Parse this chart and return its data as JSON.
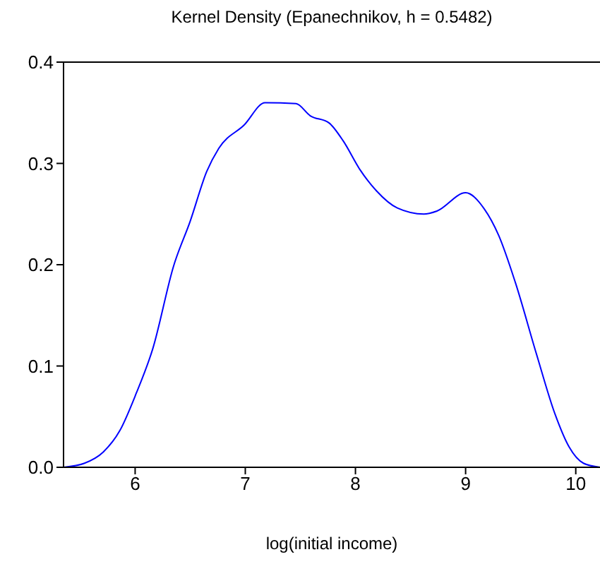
{
  "chart_data": {
    "type": "line",
    "title": "Kernel Density (Epanechnikov, h = 0.5482)",
    "xlabel": "log(initial income)",
    "x": [
      5.35,
      5.54,
      5.71,
      5.86,
      6.01,
      6.16,
      6.35,
      6.5,
      6.65,
      6.76,
      6.99,
      7.18,
      7.46,
      7.59,
      7.76,
      7.89,
      8.04,
      8.19,
      8.38,
      8.62,
      8.74,
      9.0,
      9.17,
      9.3,
      9.45,
      9.64,
      9.81,
      9.94,
      10.07,
      10.22
    ],
    "series": [
      {
        "color": "#0000ff",
        "values": [
          0.0,
          0.004,
          0.015,
          0.036,
          0.073,
          0.117,
          0.199,
          0.243,
          0.292,
          0.315,
          0.338,
          0.36,
          0.359,
          0.347,
          0.34,
          0.322,
          0.294,
          0.273,
          0.256,
          0.25,
          0.253,
          0.271,
          0.255,
          0.229,
          0.183,
          0.113,
          0.053,
          0.02,
          0.004,
          0.0
        ]
      }
    ],
    "xlim": [
      5.35,
      10.22
    ],
    "xticks": [
      6,
      7,
      8,
      9,
      10
    ],
    "ylim": [
      0,
      0.4
    ],
    "yticks": [
      {
        "value": 0,
        "label": "0.0"
      },
      {
        "value": 0.1,
        "label": "0.1"
      },
      {
        "value": 0.2,
        "label": "0.2"
      },
      {
        "value": 0.3,
        "label": "0.3"
      },
      {
        "value": 0.4,
        "label": "0.4"
      }
    ],
    "grid": false,
    "legend": false,
    "marker": "none",
    "line_style": "solid"
  }
}
